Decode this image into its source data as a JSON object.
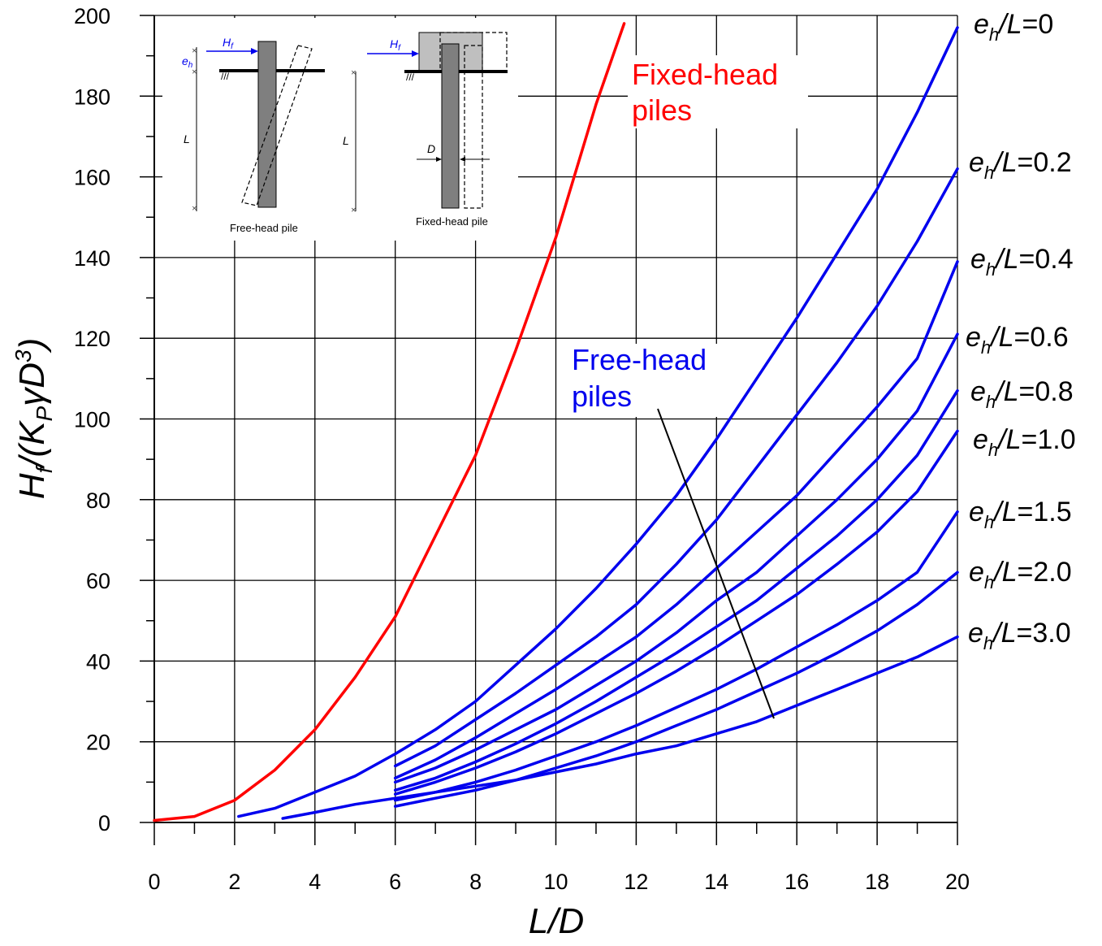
{
  "colors": {
    "fixed": "#ff0000",
    "free": "#0000ee",
    "grid": "#000000",
    "annot_line": "#000000"
  },
  "chart_data": {
    "type": "line",
    "xlabel": "L/D",
    "ylabel": "Hf/(KPγD3)",
    "xlim": [
      0,
      20
    ],
    "ylim": [
      0,
      200
    ],
    "x_ticks": [
      "0",
      "2",
      "4",
      "6",
      "8",
      "10",
      "12",
      "14",
      "16",
      "18",
      "20"
    ],
    "y_ticks": [
      "0",
      "20",
      "40",
      "60",
      "80",
      "100",
      "120",
      "140",
      "160",
      "180",
      "200"
    ],
    "grid": true,
    "annotations": {
      "fixed_head": [
        "Fixed-head",
        "piles"
      ],
      "free_head": [
        "Free-head",
        "piles"
      ]
    },
    "series": [
      {
        "name": "Fixed-head piles",
        "group": "fixed",
        "x": [
          0,
          1,
          2,
          3,
          4,
          5,
          6,
          7,
          8,
          9,
          10,
          11,
          11.7
        ],
        "y": [
          0.5,
          1.5,
          5.5,
          13,
          23,
          36,
          51,
          71,
          91,
          117,
          145,
          178,
          198
        ]
      },
      {
        "name": "eh/L=0",
        "label_parts": [
          "e",
          "h",
          "/L=0"
        ],
        "group": "free",
        "x": [
          2.1,
          3,
          4,
          5,
          6,
          7,
          8,
          9,
          10,
          11,
          12,
          13,
          14,
          15,
          16,
          17,
          18,
          19,
          20
        ],
        "y": [
          1.5,
          3.5,
          7.5,
          11.5,
          17,
          23,
          30,
          39,
          48,
          58,
          69,
          81,
          95,
          110,
          125,
          141,
          157,
          176,
          197
        ]
      },
      {
        "name": "eh/L=0.2",
        "label_parts": [
          "e",
          "h",
          "/L=0.2"
        ],
        "group": "free",
        "x": [
          6,
          7,
          8,
          9,
          10,
          11,
          12,
          13,
          14,
          15,
          16,
          17,
          18,
          19,
          20
        ],
        "y": [
          14,
          19,
          25.5,
          32,
          39,
          46,
          54,
          64,
          75,
          88,
          101,
          114,
          128,
          144,
          162
        ]
      },
      {
        "name": "eh/L=0.4",
        "label_parts": [
          "e",
          "h",
          "/L=0.4"
        ],
        "group": "free",
        "x": [
          6,
          7,
          8,
          9,
          10,
          11,
          12,
          13,
          14,
          15,
          16,
          17,
          18,
          19,
          20
        ],
        "y": [
          11,
          15.5,
          21,
          27,
          33,
          39.5,
          46,
          54,
          63,
          72,
          81,
          92,
          103,
          115,
          139
        ]
      },
      {
        "name": "eh/L=0.6",
        "label_parts": [
          "e",
          "h",
          "/L=0.6"
        ],
        "group": "free",
        "x": [
          6,
          7,
          8,
          9,
          10,
          11,
          12,
          13,
          14,
          15,
          16,
          17,
          18,
          19,
          20
        ],
        "y": [
          10,
          13.5,
          18,
          23,
          28,
          34,
          40,
          47,
          55,
          62,
          71,
          80,
          90,
          102,
          121
        ]
      },
      {
        "name": "eh/L=0.8",
        "label_parts": [
          "e",
          "h",
          "/L=0.8"
        ],
        "group": "free",
        "x": [
          6,
          7,
          8,
          9,
          10,
          11,
          12,
          13,
          14,
          15,
          16,
          17,
          18,
          19,
          20
        ],
        "y": [
          8,
          11,
          15,
          19.5,
          24.5,
          30,
          36,
          42,
          48.5,
          55,
          63,
          71,
          80,
          91,
          107
        ]
      },
      {
        "name": "eh/L=1.0",
        "label_parts": [
          "e",
          "h",
          "/L=1.0"
        ],
        "group": "free",
        "x": [
          6,
          7,
          8,
          9,
          10,
          11,
          12,
          13,
          14,
          15,
          16,
          17,
          18,
          19,
          20
        ],
        "y": [
          7,
          10,
          13.5,
          17.5,
          22,
          27,
          32,
          37.5,
          43.5,
          50,
          56.5,
          64,
          72,
          82,
          97
        ]
      },
      {
        "name": "eh/L=1.5",
        "label_parts": [
          "e",
          "h",
          "/L=1.5"
        ],
        "group": "free",
        "x": [
          6,
          7,
          8,
          9,
          10,
          11,
          12,
          13,
          14,
          15,
          16,
          17,
          18,
          19,
          20
        ],
        "y": [
          5.5,
          7.5,
          10,
          13,
          16.5,
          20,
          24,
          28.5,
          33,
          38,
          43.5,
          49,
          55,
          62,
          77
        ]
      },
      {
        "name": "eh/L=2.0",
        "label_parts": [
          "e",
          "h",
          "/L=2.0"
        ],
        "group": "free",
        "x": [
          6,
          7,
          8,
          9,
          10,
          11,
          12,
          13,
          14,
          15,
          16,
          17,
          18,
          19,
          20
        ],
        "y": [
          4,
          6,
          8,
          10.5,
          13.5,
          16.5,
          20,
          24,
          28,
          32.5,
          37,
          42,
          47.5,
          54,
          62
        ]
      },
      {
        "name": "eh/L=3.0",
        "label_parts": [
          "e",
          "h",
          "/L=3.0"
        ],
        "group": "free",
        "x": [
          3.2,
          4,
          5,
          6,
          7,
          8,
          9,
          10,
          11,
          12,
          13,
          14,
          15,
          16,
          17,
          18,
          19,
          20
        ],
        "y": [
          1,
          2.5,
          4.5,
          6,
          7.5,
          9,
          10.5,
          12.5,
          14.5,
          17,
          19,
          22,
          25,
          29,
          33,
          37,
          41,
          46
        ]
      }
    ]
  },
  "inset": {
    "free_head": {
      "caption": "Free-head pile",
      "force": "Hf",
      "ecc": "eh",
      "length": "L"
    },
    "fixed_head": {
      "caption": "Fixed-head pile",
      "force": "Hf",
      "length": "L",
      "diameter": "D"
    }
  }
}
